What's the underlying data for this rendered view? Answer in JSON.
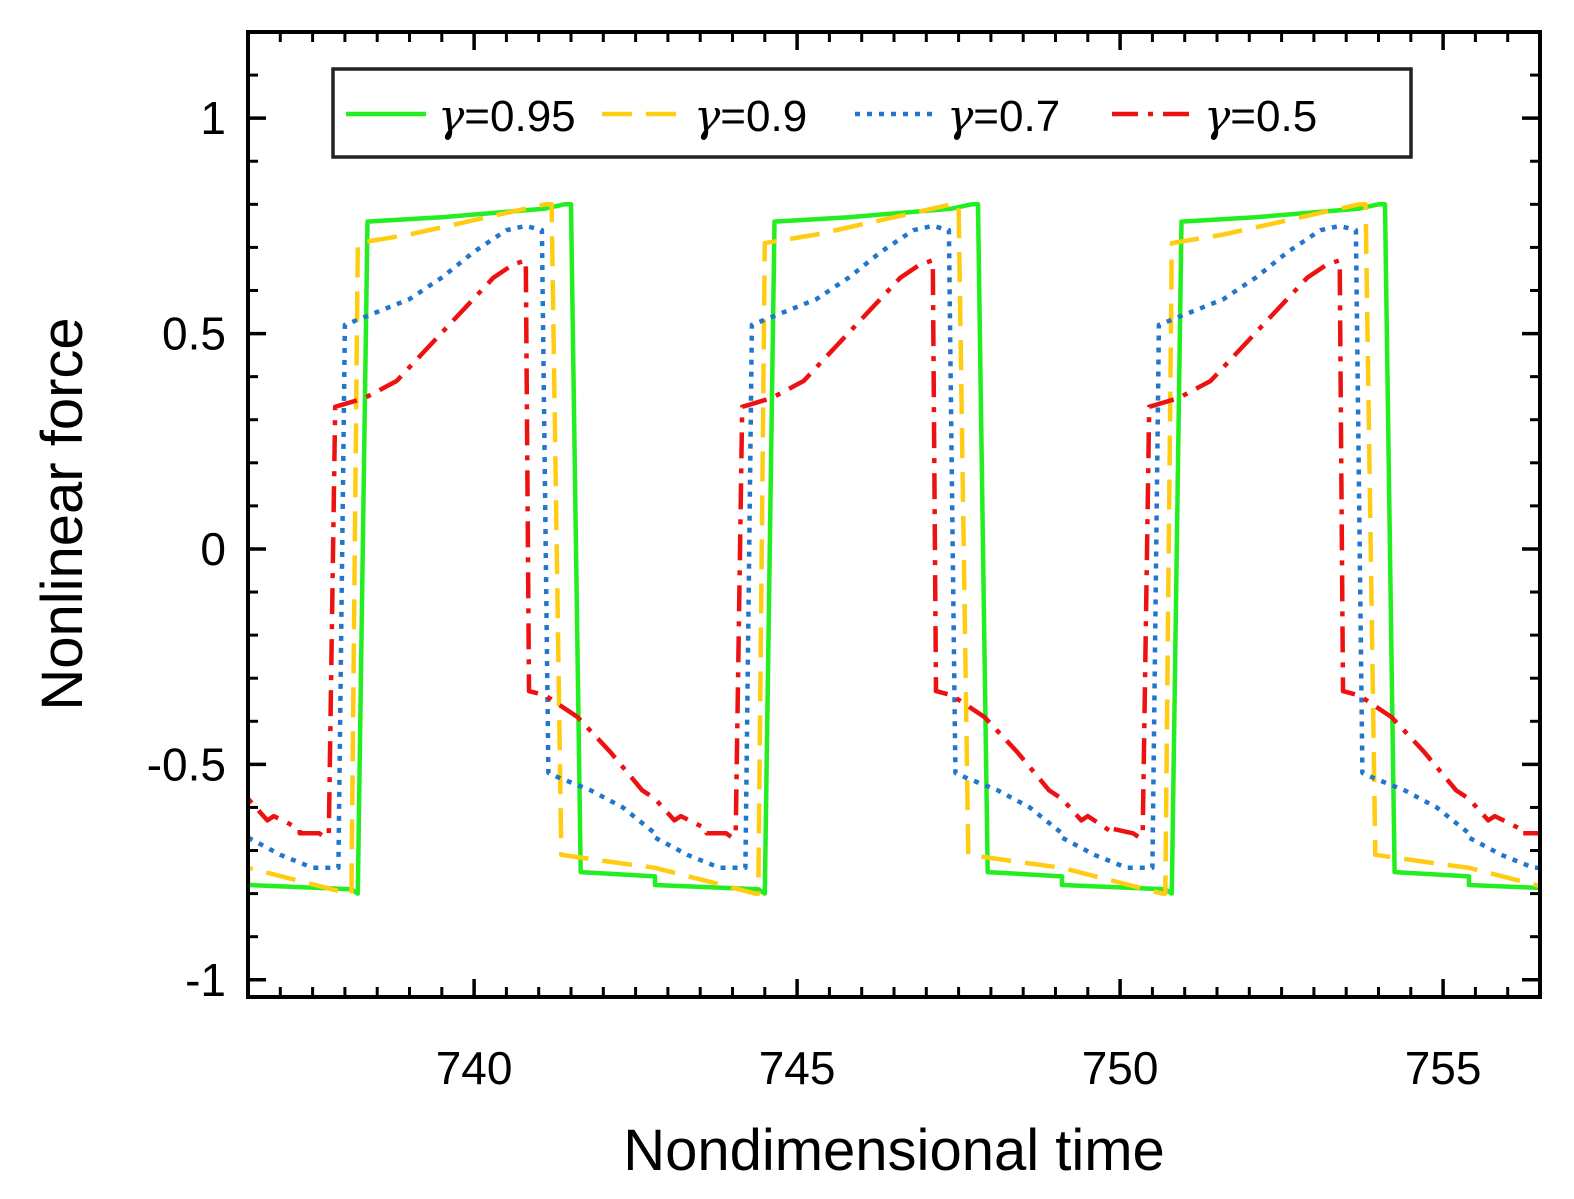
{
  "chart_data": {
    "type": "line",
    "title": "",
    "xlabel": "Nondimensional time",
    "ylabel": "Nonlinear force",
    "xlim": [
      736.5,
      756.5
    ],
    "ylim": [
      -1.04,
      1.2
    ],
    "x_ticks": [
      740,
      745,
      750,
      755
    ],
    "x_tick_labels": [
      "740",
      "745",
      "750",
      "755"
    ],
    "y_ticks": [
      -1,
      -0.5,
      0,
      0.5,
      1
    ],
    "y_tick_labels": [
      "-1",
      "-0.5",
      "0",
      "0.5",
      "1"
    ],
    "grid": false,
    "legend_position": "top",
    "period": 6.3,
    "series": [
      {
        "name": "γ=0.95",
        "gamma": "0.95",
        "color": "#22ee22",
        "dash": "solid",
        "x": [
          736.5,
          738.1,
          738.2,
          738.35,
          739.5,
          741.1,
          741.4,
          741.5,
          741.65,
          742.8,
          744.4,
          744.5
        ],
        "y": [
          -0.78,
          -0.79,
          -0.8,
          0.76,
          0.77,
          0.79,
          0.8,
          0.8,
          -0.75,
          -0.76,
          -0.79,
          -0.8
        ]
      },
      {
        "name": "γ=0.9",
        "gamma": "0.9",
        "color": "#ffcc11",
        "dash": "dash",
        "x": [
          736.5,
          737.8,
          738.05,
          738.2,
          739.0,
          741.1,
          741.2,
          741.35,
          742.3,
          744.4
        ],
        "y": [
          -0.74,
          -0.79,
          -0.8,
          0.71,
          0.73,
          0.8,
          0.8,
          -0.71,
          -0.73,
          -0.8
        ]
      },
      {
        "name": "γ=0.7",
        "gamma": "0.7",
        "color": "#2277cc",
        "dash": "dot",
        "x": [
          736.5,
          737.0,
          737.5,
          737.8,
          737.9,
          738.0,
          738.5,
          739.0,
          739.5,
          740.0,
          740.5,
          740.8,
          741.05,
          741.15,
          741.3,
          741.8,
          742.3,
          742.8,
          743.3,
          743.8,
          744.0
        ],
        "y": [
          -0.67,
          -0.71,
          -0.74,
          -0.74,
          -0.74,
          0.52,
          0.55,
          0.58,
          0.63,
          0.69,
          0.74,
          0.75,
          0.74,
          -0.52,
          -0.53,
          -0.56,
          -0.6,
          -0.66,
          -0.71,
          -0.74,
          -0.74
        ]
      },
      {
        "name": "γ=0.5",
        "gamma": "0.5",
        "color": "#ee1111",
        "dash": "dashdot",
        "x": [
          736.5,
          736.9,
          737.3,
          737.6,
          737.75,
          737.85,
          738.3,
          738.8,
          739.3,
          739.8,
          740.3,
          740.6,
          740.8,
          740.85,
          741.1,
          741.6,
          742.1,
          742.6,
          743.1,
          743.6,
          744.0
        ],
        "y": [
          -0.58,
          -0.62,
          -0.65,
          -0.66,
          -0.66,
          0.33,
          0.35,
          0.39,
          0.47,
          0.55,
          0.63,
          0.66,
          0.67,
          -0.33,
          -0.34,
          -0.39,
          -0.47,
          -0.56,
          -0.63,
          -0.66,
          -0.67
        ]
      }
    ]
  }
}
